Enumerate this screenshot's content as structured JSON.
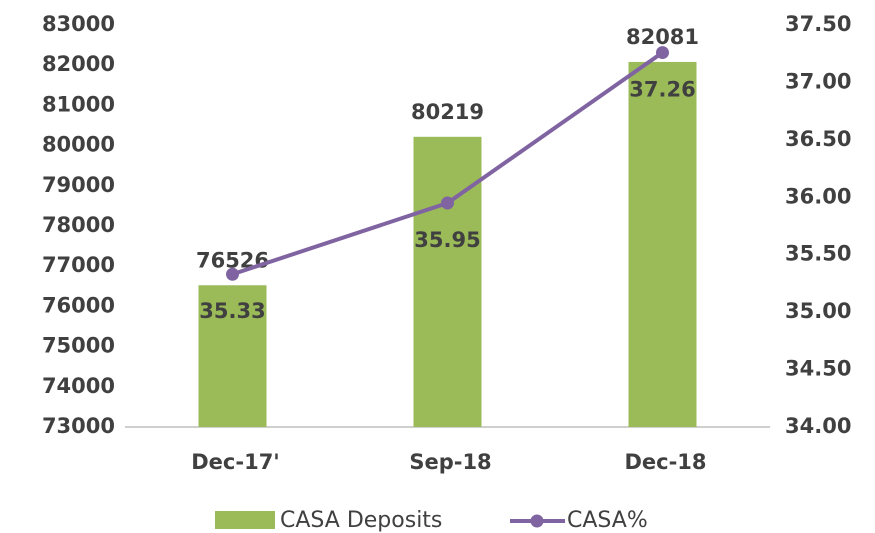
{
  "chart_data": {
    "type": "bar-line",
    "categories": [
      "Dec-17'",
      "Sep-18",
      "Dec-18"
    ],
    "series": [
      {
        "name": "CASA Deposits",
        "color": "#9bbb59",
        "type": "bar",
        "values": [
          76526,
          80219,
          82081
        ]
      },
      {
        "name": "CASA%",
        "color": "#8064a2",
        "type": "line",
        "axis": "y2",
        "values": [
          35.33,
          35.95,
          37.26
        ]
      }
    ],
    "ylim": [
      73000,
      83000
    ],
    "yticks": [
      73000,
      74000,
      75000,
      76000,
      77000,
      78000,
      79000,
      80000,
      81000,
      82000,
      83000
    ],
    "y2lim": [
      34,
      37.5
    ],
    "y2ticks": [
      {
        "value": 34,
        "label": "34.00"
      },
      {
        "value": 34.5,
        "label": "34.50"
      },
      {
        "value": 35,
        "label": "35.00"
      },
      {
        "value": 35.5,
        "label": "35.50"
      },
      {
        "value": 36,
        "label": "36.00"
      },
      {
        "value": 36.5,
        "label": "36.50"
      },
      {
        "value": 37,
        "label": "37.00"
      },
      {
        "value": 37.5,
        "label": "37.50"
      }
    ],
    "legend": "bottom"
  }
}
